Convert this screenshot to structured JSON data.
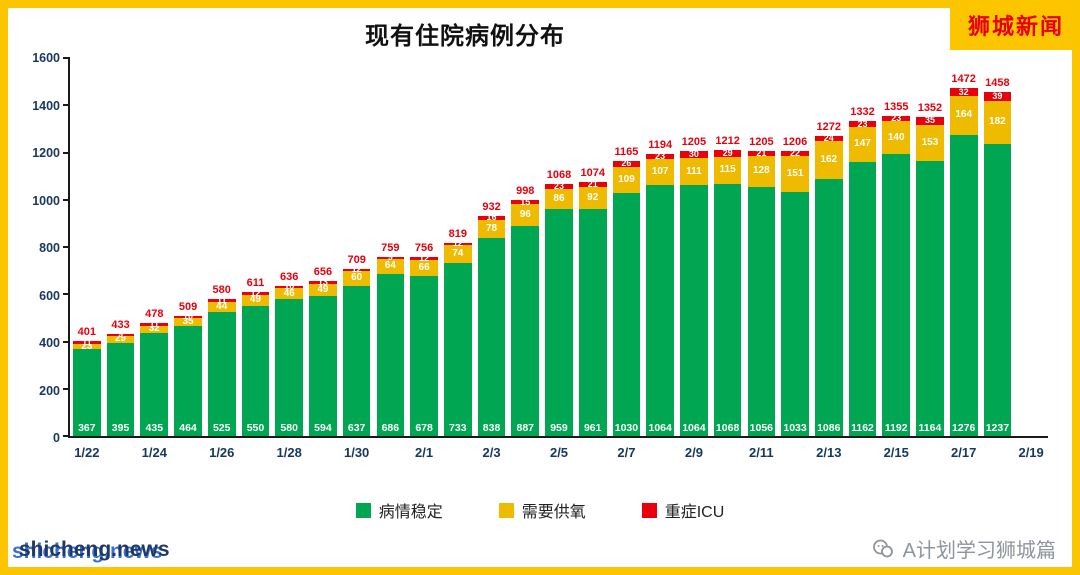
{
  "header": {
    "title": "现有住院病例分布",
    "brand": "狮城新闻"
  },
  "chart_data": {
    "type": "bar",
    "stacked": true,
    "title": "现有住院病例分布",
    "grid": false,
    "legend_position": "bottom",
    "ylim": [
      0,
      1600
    ],
    "y_ticks": [
      0,
      200,
      400,
      600,
      800,
      1000,
      1200,
      1400,
      1600
    ],
    "categories": [
      "1/22",
      "1/23",
      "1/24",
      "1/25",
      "1/26",
      "1/27",
      "1/28",
      "1/29",
      "1/30",
      "1/31",
      "2/1",
      "2/2",
      "2/3",
      "2/4",
      "2/5",
      "2/6",
      "2/7",
      "2/8",
      "2/9",
      "2/10",
      "2/11",
      "2/12",
      "2/13",
      "2/14",
      "2/15",
      "2/16",
      "2/17",
      "2/18"
    ],
    "x_tick_labels": [
      "1/22",
      "1/24",
      "1/26",
      "1/28",
      "1/30",
      "2/1",
      "2/3",
      "2/5",
      "2/7",
      "2/9",
      "2/11",
      "2/13",
      "2/15",
      "2/17",
      "2/19"
    ],
    "series": [
      {
        "name": "病情稳定",
        "color": "#00a651",
        "values": [
          367,
          395,
          435,
          464,
          525,
          550,
          580,
          594,
          637,
          686,
          678,
          733,
          838,
          887,
          959,
          961,
          1030,
          1064,
          1064,
          1068,
          1056,
          1033,
          1086,
          1162,
          1192,
          1164,
          1276,
          1237
        ]
      },
      {
        "name": "需要供氧",
        "color": "#efbb00",
        "values": [
          23,
          29,
          32,
          35,
          44,
          49,
          46,
          49,
          60,
          64,
          66,
          74,
          78,
          96,
          86,
          92,
          109,
          107,
          111,
          115,
          128,
          151,
          162,
          147,
          140,
          153,
          164,
          182
        ]
      },
      {
        "name": "重症ICU",
        "color": "#e8000d",
        "values": [
          11,
          9,
          11,
          10,
          11,
          12,
          10,
          13,
          12,
          9,
          12,
          12,
          16,
          15,
          23,
          21,
          26,
          23,
          30,
          29,
          21,
          22,
          24,
          23,
          23,
          35,
          32,
          39
        ]
      }
    ],
    "totals": [
      401,
      433,
      478,
      509,
      580,
      611,
      636,
      656,
      709,
      759,
      756,
      819,
      932,
      998,
      1068,
      1074,
      1165,
      1194,
      1205,
      1212,
      1205,
      1206,
      1272,
      1332,
      1355,
      1352,
      1472,
      1458
    ]
  },
  "colors": {
    "frame": "#fbc500",
    "total_label": "#e8000d",
    "axis": "#1a1a1a",
    "tick_label": "#17375e",
    "brand_text": "#e8000d"
  },
  "footer": {
    "watermark": "shicheng.news",
    "credit": "A计划学习狮城篇"
  }
}
